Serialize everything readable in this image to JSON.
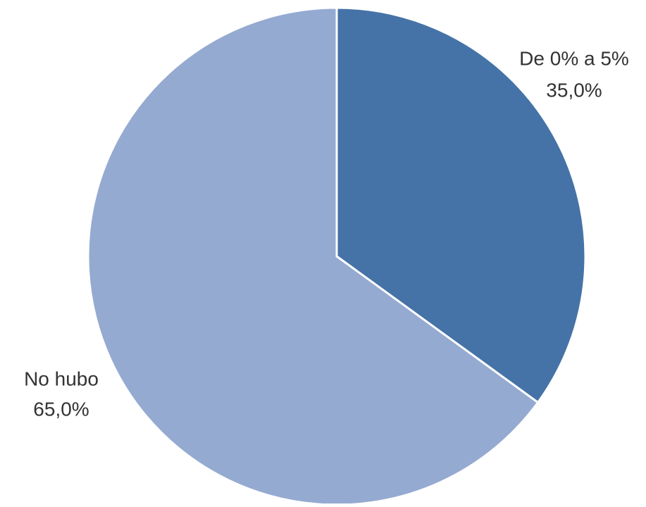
{
  "chart_data": {
    "type": "pie",
    "categories": [
      "De 0% a 5%",
      "No hubo"
    ],
    "values": [
      35,
      65
    ],
    "value_labels": [
      "35,0%",
      "65,0%"
    ],
    "colors": [
      "#4573a7",
      "#95aad1"
    ]
  }
}
